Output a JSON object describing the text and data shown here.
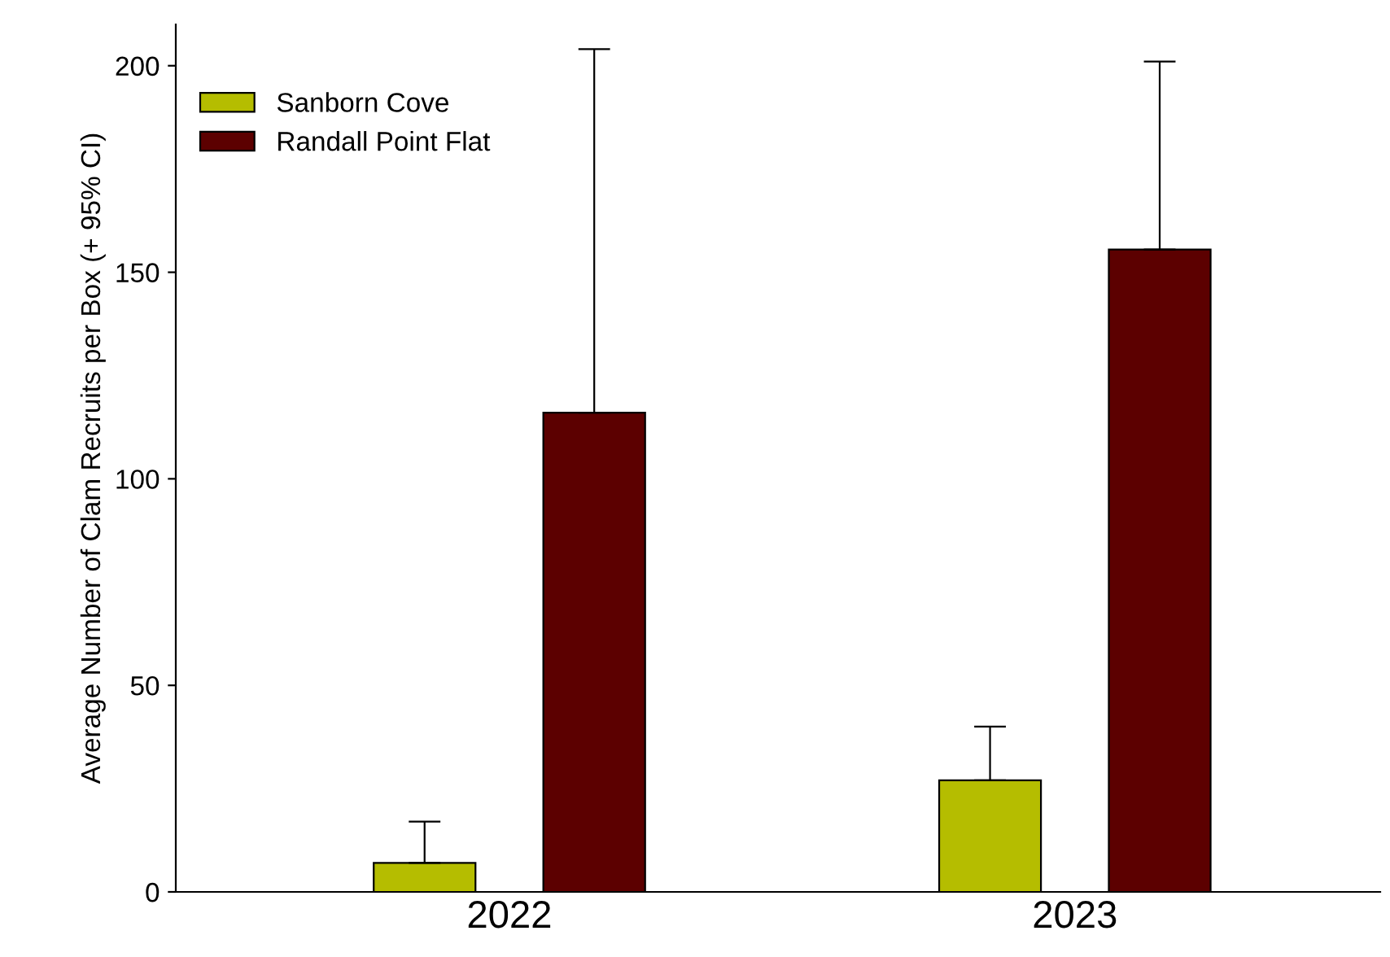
{
  "chart_data": {
    "type": "bar",
    "ylabel": "Average Number of Clam Recruits per Box (+ 95% CI)",
    "categories": [
      "2022",
      "2023"
    ],
    "series": [
      {
        "name": "Sanborn Cove",
        "color": "#b5bd00",
        "values": [
          7,
          27
        ],
        "errors": [
          [
            7,
            17
          ],
          [
            27,
            40
          ]
        ]
      },
      {
        "name": "Randall Point Flat",
        "color": "#5c0000",
        "values": [
          116,
          155.5
        ],
        "errors": [
          [
            116,
            204
          ],
          [
            155.5,
            201
          ]
        ]
      }
    ],
    "ylim": [
      0,
      210
    ],
    "yticks": [
      0,
      50,
      100,
      150,
      200
    ],
    "grid": false,
    "legend": "top left"
  }
}
